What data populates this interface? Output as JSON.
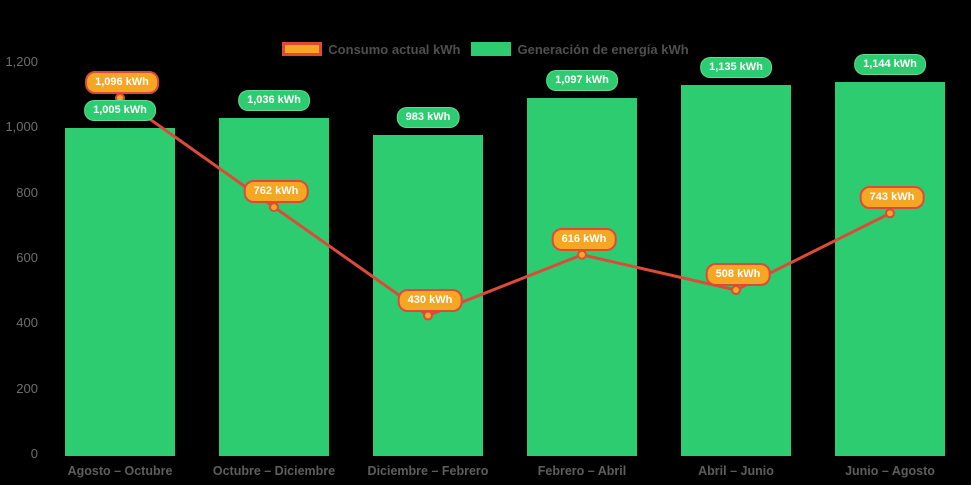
{
  "legend": {
    "items": [
      {
        "label": "Consumo actual kWh",
        "swatch_fill": "#F5A623",
        "swatch_border": "#DE4A3A"
      },
      {
        "label": "Generación de energía kWh",
        "swatch_fill": "#2ECC71",
        "swatch_border": "#2ECC71"
      }
    ]
  },
  "chart_data": {
    "type": "bar",
    "title": "",
    "categories": [
      "Agosto – Octubre",
      "Octubre – Diciembre",
      "Diciembre – Febrero",
      "Febrero – Abril",
      "Abril – Junio",
      "Junio – Agosto"
    ],
    "series": [
      {
        "name": "Generación de energía kWh",
        "type": "bar",
        "color": "#2ECC71",
        "values": [
          1005,
          1036,
          983,
          1097,
          1135,
          1144
        ],
        "data_labels": [
          "1,005 kWh",
          "1,036 kWh",
          "983 kWh",
          "1,097 kWh",
          "1,135 kWh",
          "1,144 kWh"
        ],
        "label_bg": "#2ECC71",
        "label_text_color": "#FFFFFF"
      },
      {
        "name": "Consumo actual kWh",
        "type": "line",
        "color": "#DE4A3A",
        "point_color": "#F5A623",
        "point_border": "#DE4A3A",
        "values": [
          1096,
          762,
          430,
          616,
          508,
          743
        ],
        "data_labels": [
          "1,096 kWh",
          "762 kWh",
          "430 kWh",
          "616 kWh",
          "508 kWh",
          "743 kWh"
        ],
        "label_bg": "#F5A623",
        "label_border": "#DE4A3A",
        "label_text_color": "#FFFFFF"
      }
    ],
    "ylim": [
      0,
      1200
    ],
    "ytick_values": [
      0,
      200,
      400,
      600,
      800,
      1000,
      1200
    ],
    "ytick_labels": [
      "0",
      "200",
      "400",
      "600",
      "800",
      "1,000",
      "1,200"
    ],
    "grid": false,
    "legend_position": "top",
    "background": "#000000"
  }
}
